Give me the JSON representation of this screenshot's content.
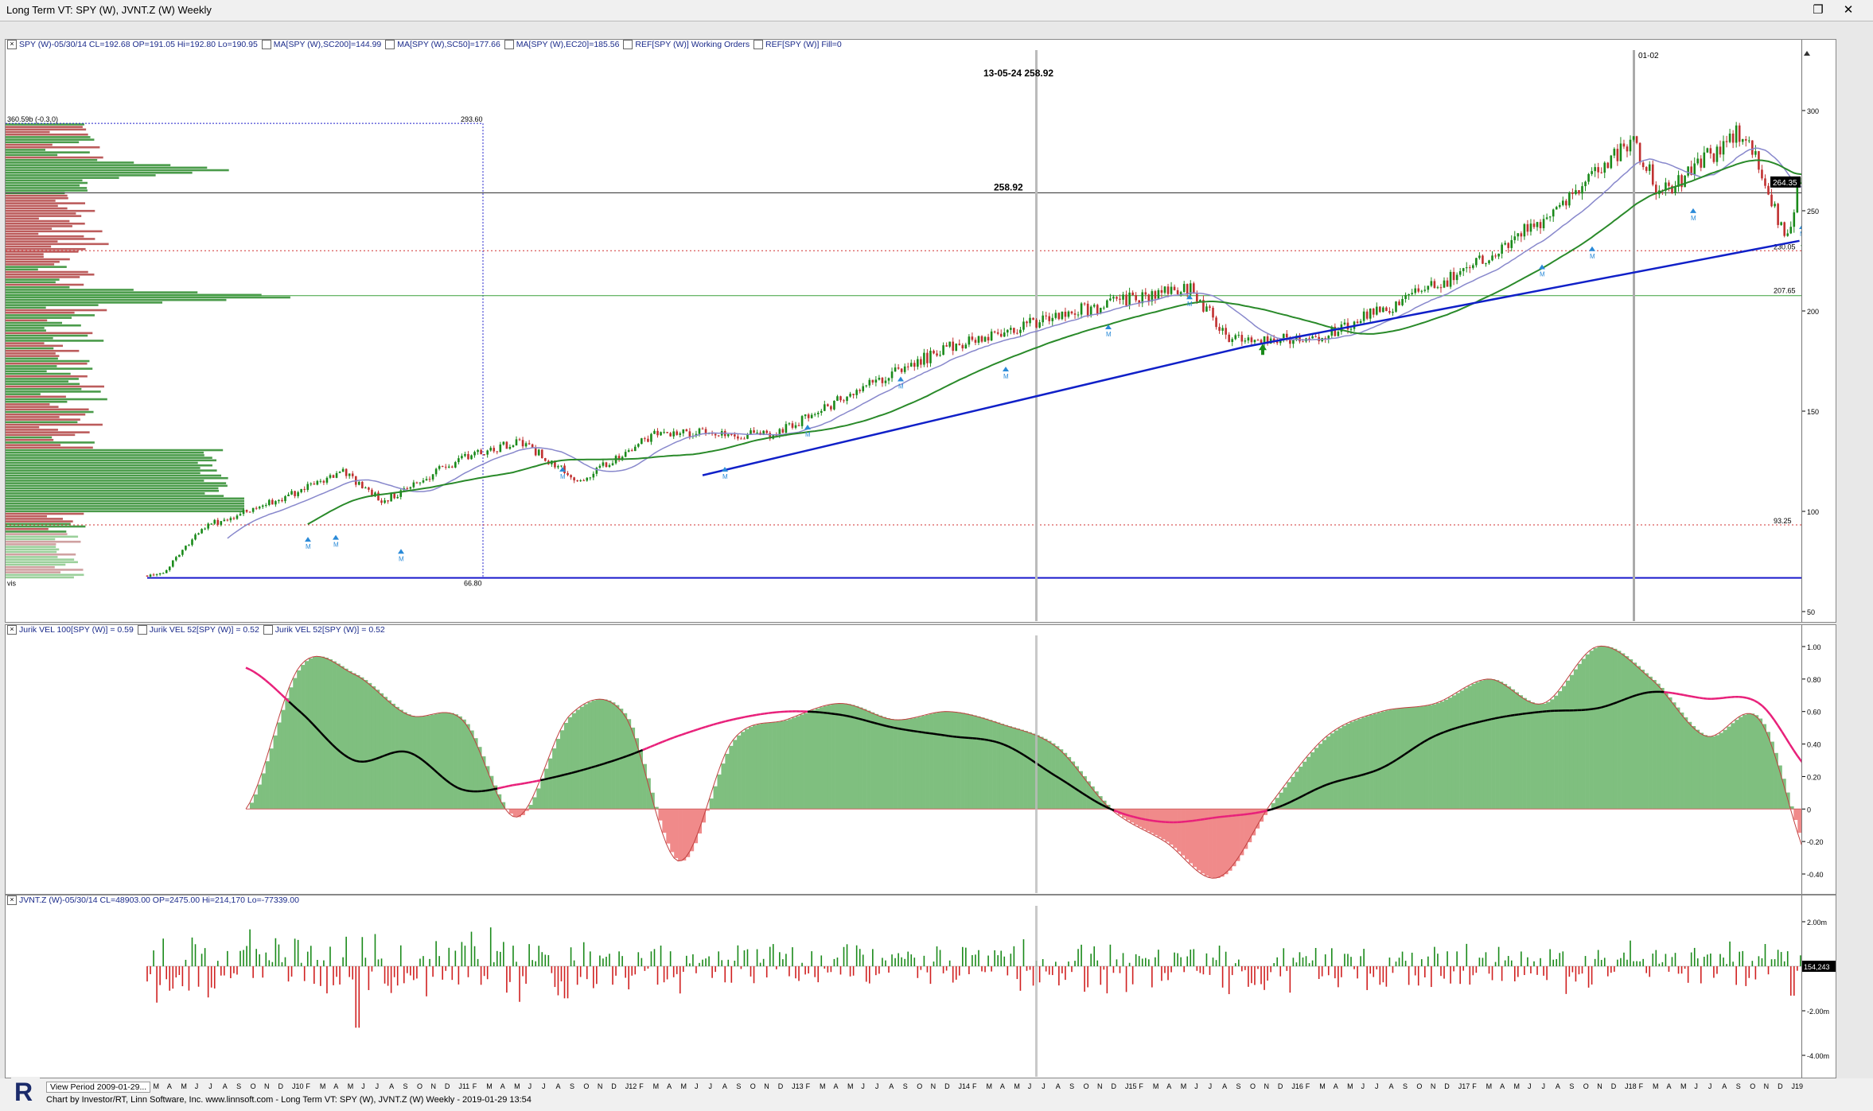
{
  "window": {
    "title": "Long Term VT: SPY (W), JVNT.Z (W) Weekly"
  },
  "colors": {
    "price_up": "#1a8a1a",
    "price_down": "#c03030",
    "ma200": "#1020c8",
    "ma50": "#2a8a2a",
    "ec20": "#8888cc",
    "osc_pos_fill": "#7fbf7f",
    "osc_neg_fill": "#f08a8a",
    "jurik52": "#e8207a",
    "jurik_black": "#000000",
    "vol_up": "#1a8a1a",
    "vol_down": "#d02020"
  },
  "price_panel": {
    "header_prefix": "SPY (W)-05/30/14 CL=192.68 OP=191.05 Hi=192.80 Lo=190.95",
    "header_items": [
      "MA[SPY (W),SC200]=144.99",
      "MA[SPY (W),SC50]=177.66",
      "MA[SPY (W),EC20]=185.56",
      "REF[SPY (W)] Working Orders",
      "REF[SPY (W)] Fill=0"
    ],
    "cursor_readout": "13-05-24  258.92",
    "ref_line_label": "258.92",
    "profile_top_left": "360.59b (-0.3,0)",
    "profile_top_value": "293.60",
    "profile_bottom_value": "66.80",
    "profile_bottom_left": "vis",
    "vline_label": "01-02",
    "current_price": "264.35",
    "level_230": "230.05",
    "level_207": "207.65",
    "level_93": "93.25",
    "axis_ticks": [
      "300",
      "250",
      "200",
      "150",
      "100",
      "50"
    ]
  },
  "osc_panel": {
    "header": [
      "Jurik VEL 100[SPY (W)] = 0.59",
      "Jurik VEL 52[SPY (W)] = 0.52",
      "Jurik VEL 52[SPY (W)] = 0.52"
    ],
    "axis_ticks": [
      "1.00",
      "0.80",
      "0.60",
      "0.40",
      "0.20",
      "0",
      "-0.20",
      "-0.40"
    ]
  },
  "vol_panel": {
    "header": "JVNT.Z (W)-05/30/14 CL=48903.00 OP=2475.00 Hi=214,170 Lo=-77339.00",
    "current": "154,243",
    "axis_ticks": [
      "2.00m",
      "0",
      "-2.00m",
      "-4.00m"
    ]
  },
  "status": {
    "view_period": "View Period 2009-01-29...",
    "footer": "Chart by Investor/RT, Linn Software, Inc. www.linnsoft.com - Long Term VT: SPY (W), JVNT.Z (W) Weekly - 2019-01-29 13:54"
  },
  "months": [
    "F",
    "M",
    "A",
    "M",
    "J",
    "J",
    "A",
    "S",
    "O",
    "N",
    "D",
    "J10",
    "F",
    "M",
    "A",
    "M",
    "J",
    "J",
    "A",
    "S",
    "O",
    "N",
    "D",
    "J11",
    "F",
    "M",
    "A",
    "M",
    "J",
    "J",
    "A",
    "S",
    "O",
    "N",
    "D",
    "J12",
    "F",
    "M",
    "A",
    "M",
    "J",
    "J",
    "A",
    "S",
    "O",
    "N",
    "D",
    "J13",
    "F",
    "M",
    "A",
    "M",
    "J",
    "J",
    "A",
    "S",
    "O",
    "N",
    "D",
    "J14",
    "F",
    "M",
    "A",
    "M",
    "J",
    "J",
    "A",
    "S",
    "O",
    "N",
    "D",
    "J15",
    "F",
    "M",
    "A",
    "M",
    "J",
    "J",
    "A",
    "S",
    "O",
    "N",
    "D",
    "J16",
    "F",
    "M",
    "A",
    "M",
    "J",
    "J",
    "A",
    "S",
    "O",
    "N",
    "D",
    "J17",
    "F",
    "M",
    "A",
    "M",
    "J",
    "J",
    "A",
    "S",
    "O",
    "N",
    "D",
    "J18",
    "F",
    "M",
    "A",
    "M",
    "J",
    "J",
    "A",
    "S",
    "O",
    "N",
    "D",
    "J19"
  ],
  "chart_data": [
    {
      "type": "candlestick",
      "title": "SPY (W) Weekly",
      "x_range": [
        "2009-02",
        "2019-01"
      ],
      "y_range": [
        50,
        310
      ],
      "key_points": [
        {
          "x": "2009-03",
          "close": 68
        },
        {
          "x": "2009-06",
          "close": 92
        },
        {
          "x": "2010-01",
          "close": 110
        },
        {
          "x": "2010-04",
          "close": 120
        },
        {
          "x": "2010-07",
          "close": 105
        },
        {
          "x": "2011-01",
          "close": 128
        },
        {
          "x": "2011-05",
          "close": 135
        },
        {
          "x": "2011-09",
          "close": 115
        },
        {
          "x": "2012-03",
          "close": 140
        },
        {
          "x": "2012-11",
          "close": 138
        },
        {
          "x": "2013-06",
          "close": 163
        },
        {
          "x": "2013-12",
          "close": 183
        },
        {
          "x": "2014-09",
          "close": 200
        },
        {
          "x": "2015-05",
          "close": 212
        },
        {
          "x": "2015-08",
          "close": 187
        },
        {
          "x": "2016-02",
          "close": 185
        },
        {
          "x": "2016-11",
          "close": 213
        },
        {
          "x": "2017-06",
          "close": 243
        },
        {
          "x": "2018-01",
          "close": 286
        },
        {
          "x": "2018-03",
          "close": 258
        },
        {
          "x": "2018-09",
          "close": 291
        },
        {
          "x": "2018-12",
          "close": 235
        },
        {
          "x": "2019-01",
          "close": 264.35
        }
      ],
      "series": [
        {
          "name": "MA[SPY (W),SC200]",
          "values": [
            {
              "x": "2012-06",
              "y": 118
            },
            {
              "x": "2015-09",
              "y": 182
            },
            {
              "x": "2019-01",
              "y": 235
            }
          ]
        },
        {
          "name": "MA[SPY (W),SC50]",
          "values": [
            {
              "x": "2010-01",
              "y": 100
            },
            {
              "x": "2013-06",
              "y": 150
            },
            {
              "x": "2016-06",
              "y": 205
            },
            {
              "x": "2019-01",
              "y": 270
            }
          ]
        }
      ],
      "reference_levels": [
        258.92,
        230.05,
        207.65,
        93.25,
        66.8
      ],
      "annotations": [
        "13-05-24  258.92",
        "01-02"
      ]
    },
    {
      "type": "area",
      "title": "Jurik VEL",
      "y_range": [
        -0.45,
        1.05
      ],
      "series": [
        {
          "name": "Jurik VEL 100[SPY (W)]",
          "values": [
            0.0,
            0.88,
            0.83,
            0.58,
            0.55,
            -0.05,
            0.58,
            0.58,
            -0.32,
            0.42,
            0.55,
            0.65,
            0.55,
            0.6,
            0.52,
            0.38,
            0.0,
            -0.2,
            -0.42,
            0.05,
            0.45,
            0.6,
            0.65,
            0.8,
            0.65,
            1.0,
            0.8,
            0.45,
            0.55,
            -0.38
          ]
        },
        {
          "name": "Jurik VEL 52[SPY (W)]",
          "values": [
            0.87,
            0.6,
            0.3,
            0.35,
            0.12,
            0.15,
            0.22,
            0.32,
            0.45,
            0.55,
            0.6,
            0.58,
            0.5,
            0.45,
            0.4,
            0.2,
            0.0,
            -0.08,
            -0.05,
            0.0,
            0.15,
            0.25,
            0.45,
            0.55,
            0.6,
            0.62,
            0.72,
            0.68,
            0.65,
            0.22
          ]
        }
      ]
    },
    {
      "type": "bar",
      "title": "JVNT.Z (W)",
      "y_range": [
        -5.0,
        2.3
      ],
      "unit": "millions",
      "last_value": 154243
    }
  ]
}
